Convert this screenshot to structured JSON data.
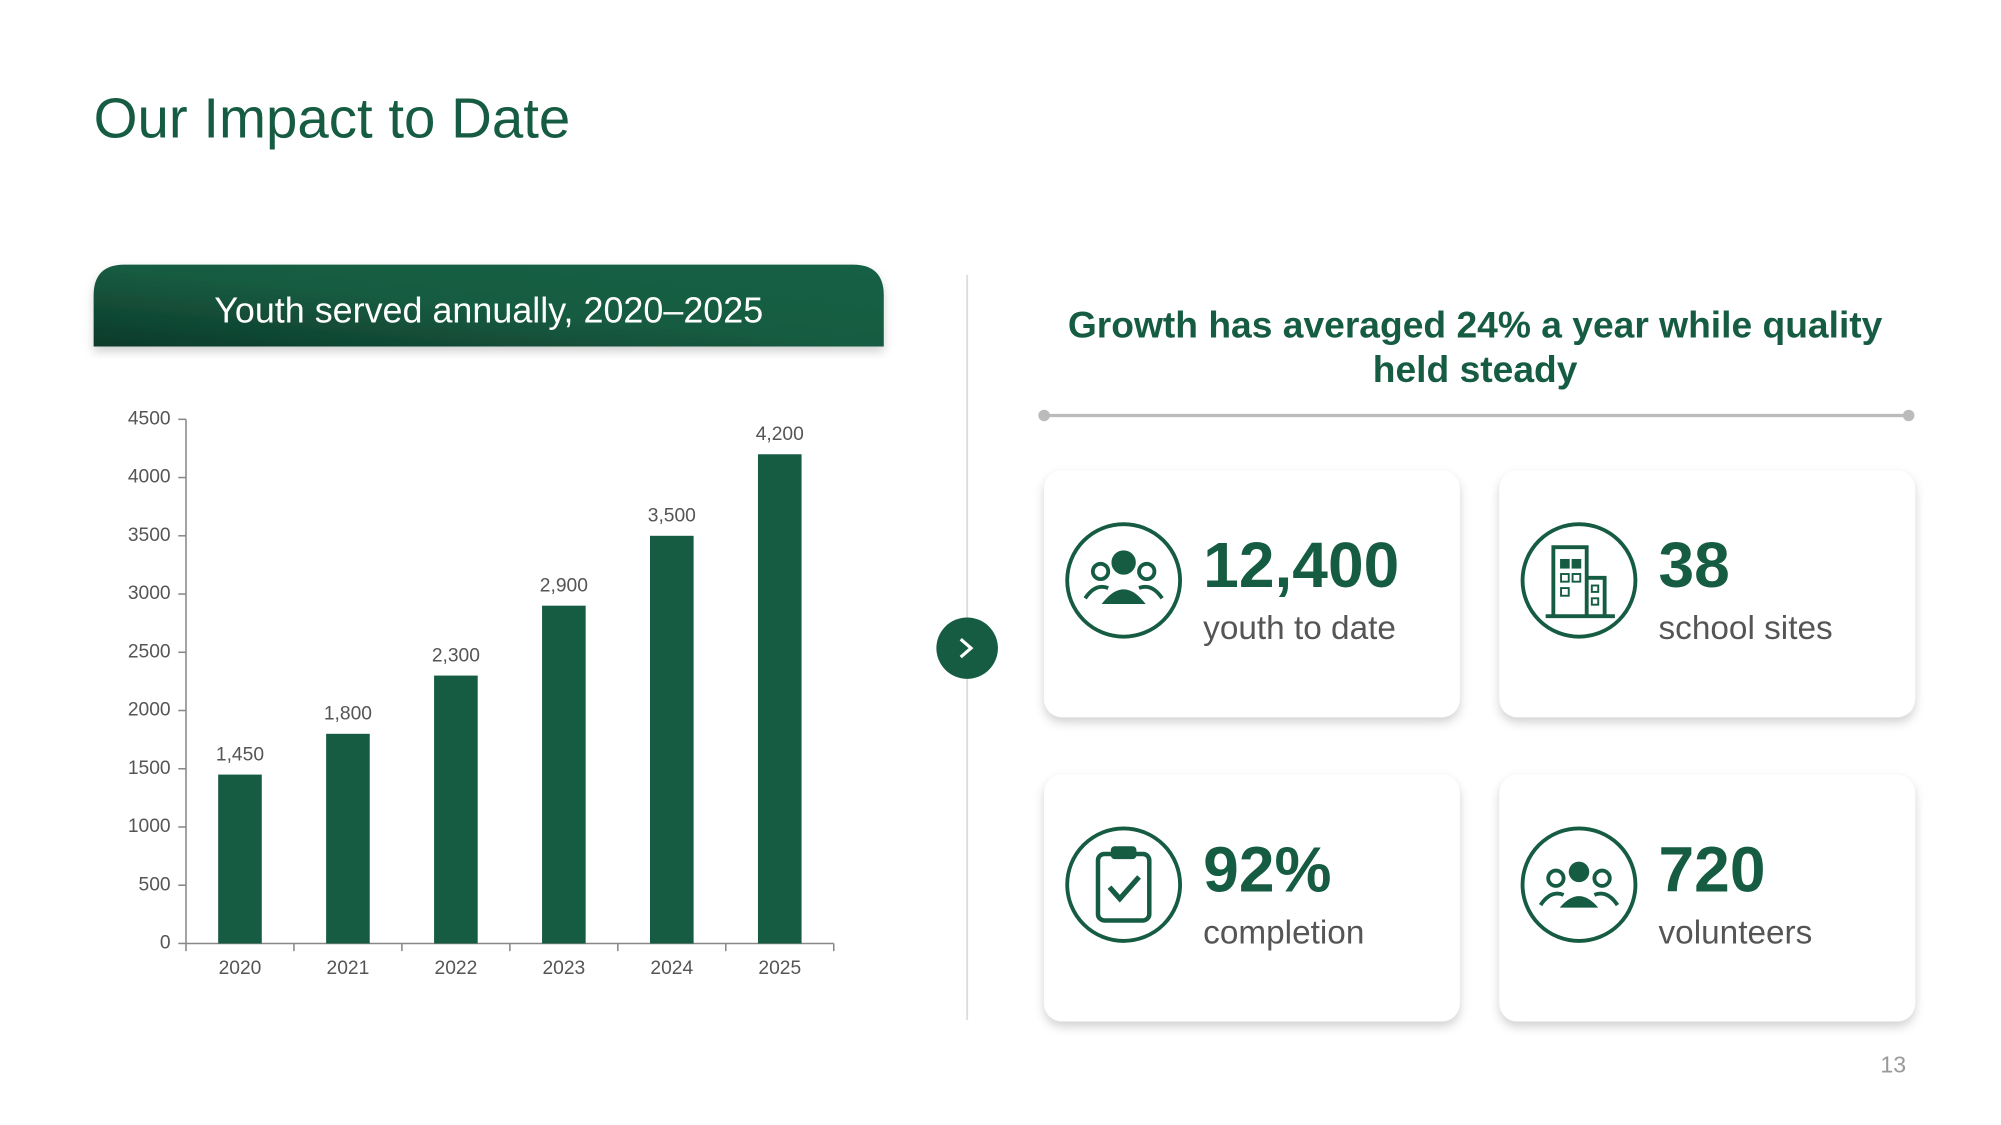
{
  "title": "Our Impact to Date",
  "chart_data": {
    "type": "bar",
    "title": "Youth served annually, 2020–2025",
    "categories": [
      "2020",
      "2021",
      "2022",
      "2023",
      "2024",
      "2025"
    ],
    "values": [
      1450,
      1800,
      2300,
      2900,
      3500,
      4200
    ],
    "value_labels": [
      "1,450",
      "1,800",
      "2,300",
      "2,900",
      "3,500",
      "4,200"
    ],
    "color": "#165c42",
    "ylim": [
      0,
      4500
    ],
    "yticks": [
      0,
      500,
      1000,
      1500,
      2000,
      2500,
      3000,
      3500,
      4000,
      4500
    ],
    "grid": false
  },
  "summary": "Growth has averaged 24% a year while quality held steady",
  "stats": [
    {
      "value": "12,400",
      "label": "youth to date"
    },
    {
      "value": "38",
      "label": "school sites"
    },
    {
      "value": "92%",
      "label": "completion"
    },
    {
      "value": "720",
      "label": "volunteers"
    }
  ],
  "page_number": "13"
}
